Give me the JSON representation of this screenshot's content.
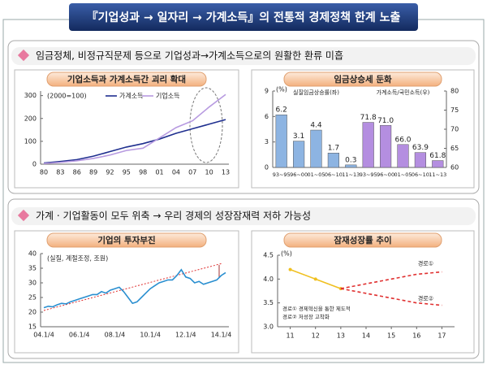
{
  "title": "『기업성과 → 일자리 → 가계소득』의 전통적 경제정책 한계 노출",
  "sections": [
    {
      "heading": "임금정체, 비정규직문제 등으로 기업성과→가계소득으로의 원활한 환류 미흡"
    },
    {
      "heading": "가계 · 기업활동이 모두 위축   →   우리 경제의 성장잠재력 저하 가능성"
    }
  ],
  "chart_data": [
    {
      "type": "line",
      "title": "기업소득과 가계소득간 괴리 확대",
      "annotation": "(2000=100)",
      "categories": [
        "80",
        "83",
        "86",
        "89",
        "92",
        "95",
        "98",
        "01",
        "04",
        "07",
        "10",
        "13"
      ],
      "series": [
        {
          "name": "가계소득",
          "color": "#1f2f8f",
          "values": [
            5,
            12,
            20,
            35,
            55,
            75,
            90,
            110,
            135,
            155,
            175,
            195
          ]
        },
        {
          "name": "기업소득",
          "color": "#b79ae0",
          "values": [
            3,
            8,
            15,
            25,
            40,
            60,
            70,
            115,
            160,
            190,
            250,
            305
          ]
        }
      ],
      "ylim": [
        0,
        320
      ],
      "yticks": [
        0,
        100,
        200,
        300
      ]
    },
    {
      "type": "bar",
      "title": "임금상승세 둔화",
      "y_unit": "(%)",
      "categories": [
        "93~95",
        "96~00",
        "01~05",
        "06~10",
        "11~13",
        "93~95",
        "96~00",
        "01~05",
        "06~10",
        "11~13"
      ],
      "series": [
        {
          "name": "실질임금상승률(좌)",
          "color": "#8db4e2",
          "values": [
            6.2,
            3.1,
            4.4,
            1.7,
            0.3,
            null,
            null,
            null,
            null,
            null
          ]
        },
        {
          "name": "가계소득/국민소득(우)",
          "color": "#b48ee0",
          "axis": "y2",
          "values": [
            null,
            null,
            null,
            null,
            null,
            71.8,
            71.0,
            66.0,
            63.9,
            61.8
          ],
          "value_labels": [
            null,
            null,
            null,
            null,
            null,
            "71.8",
            "71.0",
            "66.0",
            "63.9",
            "61.8"
          ]
        }
      ],
      "ylim": [
        0,
        9
      ],
      "yticks": [
        0,
        3,
        6,
        9
      ],
      "y2lim": [
        60,
        80
      ],
      "y2ticks": [
        60,
        65,
        70,
        75,
        80
      ]
    },
    {
      "type": "line",
      "title": "기업의 투자부진",
      "annotation": "(실질, 계절조정, 조원)",
      "categories": [
        "04.1/4",
        null,
        null,
        null,
        null,
        null,
        null,
        null,
        "06.1/4",
        null,
        null,
        null,
        null,
        null,
        null,
        null,
        "08.1/4",
        null,
        null,
        null,
        null,
        null,
        null,
        null,
        "10.1/4",
        null,
        null,
        null,
        null,
        null,
        null,
        null,
        "12.1/4",
        null,
        null,
        null,
        null,
        null,
        null,
        null,
        "14.1/4",
        null
      ],
      "series": [
        {
          "color": "#2a8fd0",
          "values": [
            21.5,
            22,
            21.8,
            22.5,
            23,
            22.8,
            23.5,
            24,
            24.5,
            25,
            25.5,
            26,
            26,
            27,
            26.5,
            27.5,
            28,
            28.5,
            27,
            25,
            23,
            23.5,
            25,
            26.5,
            28,
            29,
            30,
            30.5,
            31,
            31,
            32.5,
            34.5,
            32,
            31.5,
            30,
            30.5,
            29.5,
            30,
            30.5,
            31,
            32.5,
            33.5
          ]
        }
      ],
      "ylim": [
        15,
        40
      ],
      "yticks": [
        15,
        20,
        25,
        30,
        35,
        40
      ]
    },
    {
      "type": "line",
      "title": "잠재성장률 추이",
      "y_unit": "(%)",
      "x": [
        11,
        12,
        13,
        14,
        15,
        16,
        17
      ],
      "series": [
        {
          "color": "#f0c020",
          "values": [
            4.2,
            4.0,
            3.8,
            null,
            null,
            null,
            null
          ]
        },
        {
          "name": "경로①",
          "color": "#e03030",
          "dashed": true,
          "values": [
            null,
            null,
            3.8,
            3.9,
            4.0,
            4.1,
            4.15
          ]
        },
        {
          "name": "경로②",
          "color": "#e03030",
          "dashed": true,
          "values": [
            null,
            null,
            3.8,
            3.7,
            3.6,
            3.5,
            3.45
          ]
        }
      ],
      "notes": [
        "경로①  경제혁신을 통한 제도적",
        "경로②  저성장 고착화"
      ],
      "xlim": [
        10.5,
        17.5
      ],
      "xticks": [
        11,
        12,
        13,
        14,
        15,
        16,
        17
      ],
      "ylim": [
        3,
        4.5
      ],
      "yticks": [
        {
          "value": 3,
          "label": "3.0"
        },
        3.5,
        {
          "value": 4,
          "label": "4.0"
        },
        4.5
      ]
    }
  ]
}
